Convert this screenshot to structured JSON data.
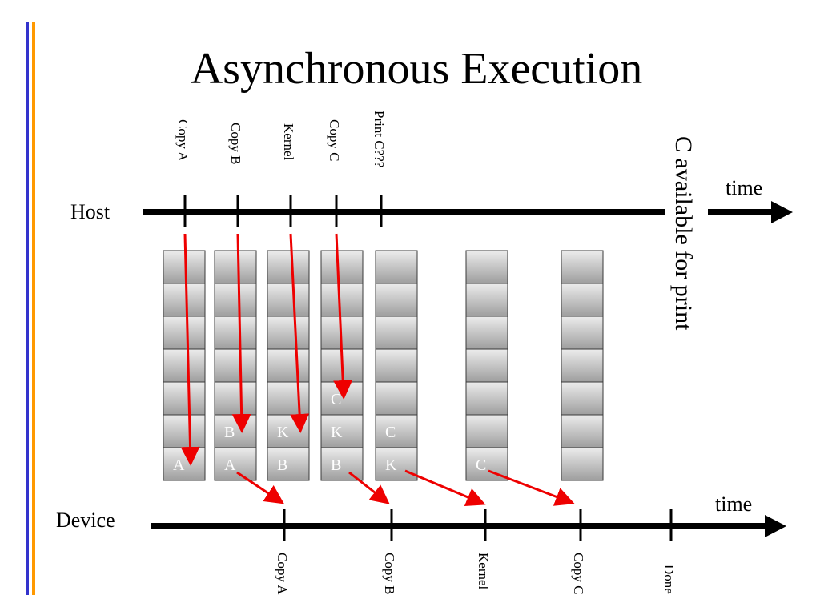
{
  "slide": {
    "title": "Asynchronous Execution",
    "colors": {
      "accent_bar_blue": "#3333cc",
      "accent_bar_orange": "#ff9900",
      "arrow": "#ee0000",
      "timeline": "#000000",
      "queue_cell_top": "#e8e8e8",
      "queue_cell_bottom": "#a0a0a0"
    }
  },
  "host": {
    "label": "Host",
    "time_label": "time",
    "events": [
      "Copy A",
      "Copy B",
      "Kernel",
      "Copy C",
      "Print C???"
    ],
    "note": "C available for print"
  },
  "device": {
    "label": "Device",
    "time_label": "time",
    "events": [
      "Copy A",
      "Copy B",
      "Kernel",
      "Copy C",
      "Done"
    ]
  },
  "queues": [
    {
      "cells": [
        "",
        "",
        "",
        "",
        "",
        "",
        "A"
      ]
    },
    {
      "cells": [
        "",
        "",
        "",
        "",
        "",
        "B",
        "A"
      ]
    },
    {
      "cells": [
        "",
        "",
        "",
        "",
        "",
        "K",
        "B"
      ]
    },
    {
      "cells": [
        "",
        "",
        "",
        "",
        "C",
        "K",
        "B"
      ]
    },
    {
      "cells": [
        "",
        "",
        "",
        "",
        "",
        "C",
        "K"
      ]
    },
    {
      "cells": [
        "",
        "",
        "",
        "",
        "",
        "",
        "C"
      ]
    },
    {
      "cells": [
        "",
        "",
        "",
        "",
        "",
        "",
        ""
      ]
    }
  ]
}
